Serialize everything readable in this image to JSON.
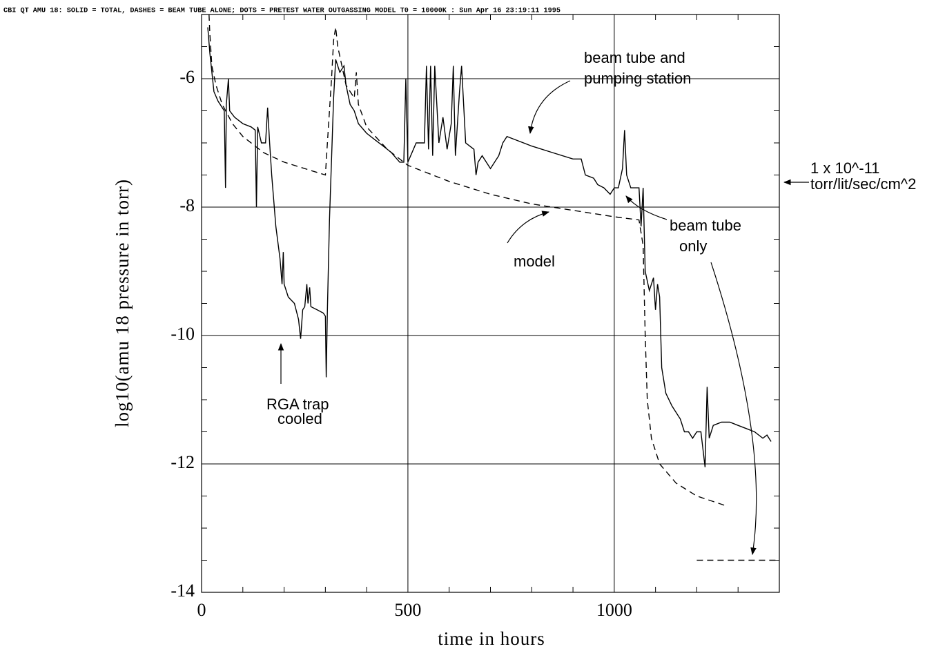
{
  "chart_data": {
    "type": "line",
    "title": "CBI QT AMU 18: SOLID = TOTAL, DASHES = BEAM TUBE ALONE; DOTS = PRETEST WATER OUTGASSING MODEL T0 = 10000K : Sun Apr 16 23:19:11 1995",
    "x_label": "time in hours",
    "y_label": "log10(amu 18 pressure in torr)",
    "xlim": [
      0,
      1400
    ],
    "ylim": [
      -14,
      -5
    ],
    "xticks": [
      0,
      500,
      1000
    ],
    "yticks": [
      -14,
      -12,
      -10,
      -8,
      -6
    ],
    "minor_xticks": [
      100,
      200,
      300,
      400,
      600,
      700,
      800,
      900,
      1100,
      1200,
      1300
    ],
    "minor_yticks": [
      -13.5,
      -13,
      -12.5,
      -11.5,
      -11,
      -10.5,
      -9.5,
      -9,
      -8.5,
      -7.5,
      -7,
      -6.5,
      -5.5
    ],
    "grid": true,
    "series": [
      {
        "color": "#000000",
        "dash": "solid",
        "x": [
          15,
          20,
          30,
          40,
          50,
          55,
          58,
          60,
          65,
          68,
          80,
          100,
          120,
          130,
          133,
          136,
          145,
          155,
          160,
          165,
          170,
          180,
          190,
          195,
          198,
          200,
          210,
          225,
          235,
          240,
          245,
          250,
          255,
          258,
          262,
          265,
          280,
          295,
          300,
          302,
          305,
          310,
          320,
          325,
          335,
          345,
          350,
          360,
          370,
          380,
          400,
          420,
          440,
          460,
          480,
          490,
          495,
          500,
          520,
          540,
          545,
          550,
          555,
          560,
          565,
          575,
          585,
          595,
          605,
          610,
          615,
          625,
          630,
          640,
          660,
          665,
          670,
          680,
          690,
          700,
          720,
          730,
          740,
          760,
          800,
          850,
          900,
          920,
          930,
          950,
          960,
          975,
          990,
          1000,
          1010,
          1020,
          1025,
          1030,
          1040,
          1060,
          1065,
          1070,
          1075,
          1085,
          1095,
          1100,
          1105,
          1110,
          1115,
          1125,
          1140,
          1160,
          1170,
          1180,
          1190,
          1200,
          1210,
          1220,
          1225,
          1230,
          1240,
          1260,
          1280,
          1300,
          1320,
          1340,
          1360,
          1370,
          1380
        ],
        "values": [
          -5.2,
          -5.6,
          -6.2,
          -6.35,
          -6.45,
          -6.5,
          -7.7,
          -6.4,
          -6.0,
          -6.5,
          -6.6,
          -6.7,
          -6.75,
          -6.8,
          -8.0,
          -6.75,
          -7.0,
          -7.0,
          -6.45,
          -7.0,
          -7.5,
          -8.3,
          -8.8,
          -9.2,
          -8.7,
          -9.2,
          -9.4,
          -9.5,
          -9.75,
          -10.05,
          -9.6,
          -9.55,
          -9.2,
          -9.5,
          -9.25,
          -9.55,
          -9.6,
          -9.65,
          -9.7,
          -10.65,
          -9.6,
          -8.2,
          -6.3,
          -5.7,
          -5.9,
          -5.8,
          -6.1,
          -6.4,
          -6.5,
          -6.7,
          -6.85,
          -6.95,
          -7.05,
          -7.15,
          -7.3,
          -7.3,
          -6.0,
          -7.3,
          -7.0,
          -7.0,
          -5.8,
          -7.1,
          -5.8,
          -7.2,
          -5.8,
          -7.0,
          -6.6,
          -7.1,
          -6.7,
          -5.8,
          -7.2,
          -6.2,
          -5.8,
          -7.0,
          -7.1,
          -7.5,
          -7.3,
          -7.2,
          -7.3,
          -7.4,
          -7.2,
          -7.0,
          -6.9,
          -6.95,
          -7.05,
          -7.15,
          -7.25,
          -7.25,
          -7.5,
          -7.55,
          -7.65,
          -7.7,
          -7.8,
          -7.7,
          -7.7,
          -7.4,
          -6.8,
          -7.5,
          -7.7,
          -7.7,
          -8.3,
          -7.7,
          -9.0,
          -9.3,
          -9.1,
          -9.6,
          -9.2,
          -9.4,
          -10.5,
          -10.9,
          -11.1,
          -11.3,
          -11.5,
          -11.5,
          -11.6,
          -11.5,
          -11.5,
          -12.05,
          -10.8,
          -11.6,
          -11.4,
          -11.35,
          -11.35,
          -11.4,
          -11.45,
          -11.5,
          -11.6,
          -11.55,
          -11.65
        ]
      },
      {
        "color": "#000000",
        "dash": "dashed",
        "x": [
          18,
          20,
          25,
          35,
          50,
          75,
          100,
          150,
          200,
          250,
          300,
          305,
          315,
          320,
          325,
          330,
          340,
          350,
          360,
          370,
          375,
          380,
          400,
          450,
          500,
          600,
          700,
          800,
          900,
          1000,
          1060,
          1070,
          1075,
          1080,
          1090,
          1110,
          1150,
          1200,
          1270
        ],
        "values": [
          -5.0,
          -5.3,
          -5.8,
          -6.1,
          -6.4,
          -6.7,
          -6.9,
          -7.15,
          -7.3,
          -7.4,
          -7.5,
          -7.0,
          -6.0,
          -5.4,
          -5.2,
          -5.5,
          -5.8,
          -6.1,
          -6.2,
          -6.3,
          -5.9,
          -6.4,
          -6.75,
          -7.1,
          -7.35,
          -7.6,
          -7.8,
          -7.95,
          -8.05,
          -8.15,
          -8.2,
          -8.6,
          -10.0,
          -11.0,
          -11.6,
          -12.0,
          -12.3,
          -12.5,
          -12.65
        ]
      },
      {
        "color": "#000000",
        "dash": "dashed",
        "x": [
          1200,
          1400
        ],
        "values": [
          -13.5,
          -13.5
        ]
      }
    ],
    "annotations": [
      "beam tube and",
      "pumping station",
      "1 x 10^-11",
      "torr/lit/sec/cm^2",
      "beam tube",
      "only",
      "model",
      "RGA trap",
      "cooled"
    ]
  }
}
